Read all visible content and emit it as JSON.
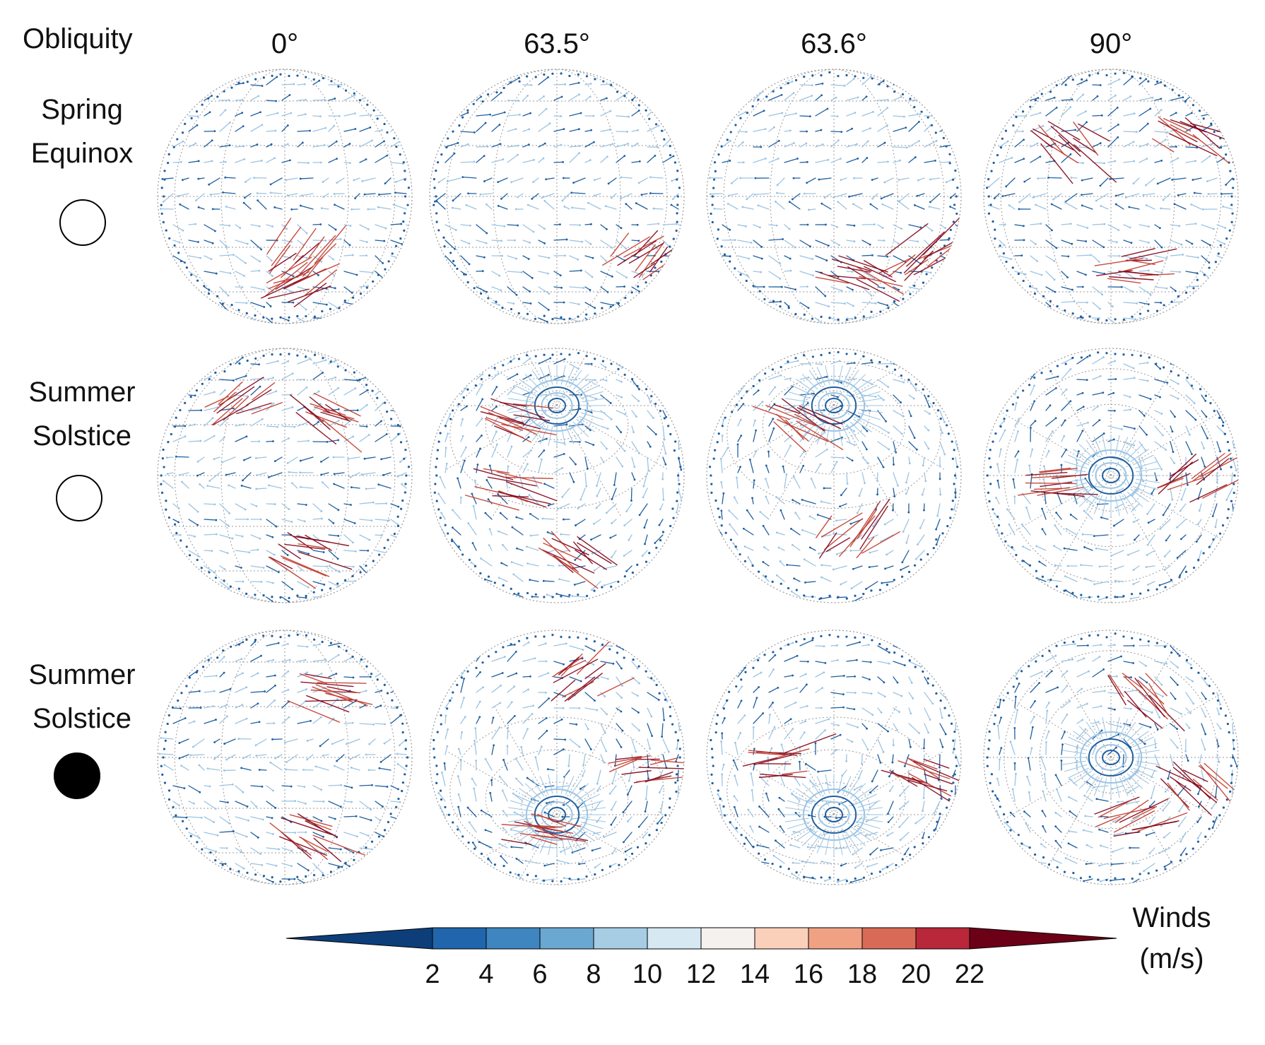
{
  "header": {
    "corner_label": "Obliquity",
    "columns": [
      "0°",
      "63.5°",
      "63.6°",
      "90°"
    ]
  },
  "rows": [
    {
      "label_lines": [
        "Spring",
        "Equinox"
      ],
      "marker": "open-circle"
    },
    {
      "label_lines": [
        "Summer",
        "Solstice"
      ],
      "marker": "open-circle"
    },
    {
      "label_lines": [
        "Summer",
        "Solstice"
      ],
      "marker": "filled-circle"
    }
  ],
  "panels": [
    {
      "row": 0,
      "col": 0,
      "view": "equatorial",
      "red_regions": [
        "south-polar",
        "south-center"
      ]
    },
    {
      "row": 0,
      "col": 1,
      "view": "equatorial",
      "red_regions": [
        "south-east"
      ]
    },
    {
      "row": 0,
      "col": 2,
      "view": "equatorial",
      "red_regions": [
        "south-east",
        "south-center"
      ]
    },
    {
      "row": 0,
      "col": 3,
      "view": "equatorial",
      "red_regions": [
        "north-east",
        "north-west",
        "south-center"
      ]
    },
    {
      "row": 1,
      "col": 0,
      "view": "equatorial",
      "red_regions": [
        "north-west",
        "north-center",
        "south-center"
      ]
    },
    {
      "row": 1,
      "col": 1,
      "view": "tilted-pole",
      "red_regions": [
        "north-west",
        "south-center",
        "west"
      ]
    },
    {
      "row": 1,
      "col": 2,
      "view": "tilted-pole",
      "red_regions": [
        "north-west",
        "south-center"
      ]
    },
    {
      "row": 1,
      "col": 3,
      "view": "pole-on",
      "red_regions": [
        "east",
        "west"
      ]
    },
    {
      "row": 2,
      "col": 0,
      "view": "equatorial",
      "red_regions": [
        "north-center",
        "south-center"
      ]
    },
    {
      "row": 2,
      "col": 1,
      "view": "tilted-pole-south",
      "red_regions": [
        "north-center",
        "south-west",
        "east"
      ]
    },
    {
      "row": 2,
      "col": 2,
      "view": "tilted-pole-south",
      "red_regions": [
        "east",
        "west"
      ]
    },
    {
      "row": 2,
      "col": 3,
      "view": "pole-on",
      "red_regions": [
        "north-center",
        "south-center",
        "east"
      ]
    }
  ],
  "colorbar": {
    "label_lines": [
      "Winds",
      "(m/s)"
    ],
    "ticks": [
      "2",
      "4",
      "6",
      "8",
      "10",
      "12",
      "14",
      "16",
      "18",
      "20",
      "22"
    ],
    "colors": [
      "#2166ac",
      "#3f86c0",
      "#6aa8d2",
      "#a6cde3",
      "#d6e8f2",
      "#f5f1ee",
      "#fbd0bb",
      "#f0a184",
      "#d96b56",
      "#b8273a",
      "#a01228"
    ],
    "extend_low_color": "#0d3e7a",
    "extend_high_color": "#6b0017"
  },
  "colors": {
    "vector_blue_dark": "#1f5fa0",
    "vector_blue_light": "#9cc4e2",
    "vector_red": "#c0392b",
    "vector_red_dark": "#7f0015",
    "grid": "#999999"
  }
}
